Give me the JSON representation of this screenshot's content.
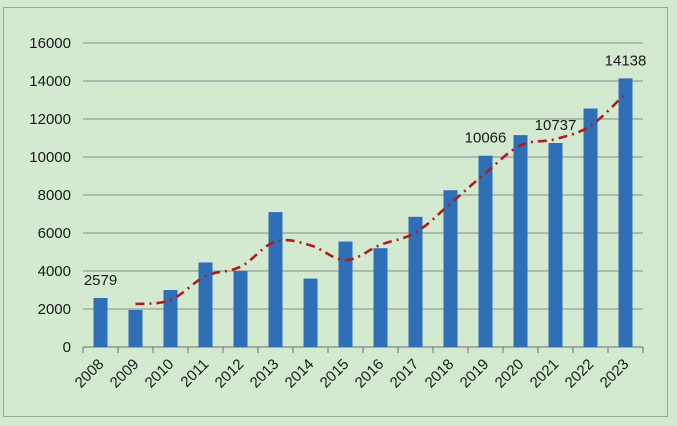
{
  "chart_data": {
    "type": "bar",
    "title": "",
    "xlabel": "",
    "ylabel": "",
    "categories": [
      "2008",
      "2009",
      "2010",
      "2011",
      "2012",
      "2013",
      "2014",
      "2015",
      "2016",
      "2017",
      "2018",
      "2019",
      "2020",
      "2021",
      "2022",
      "2023"
    ],
    "series": [
      {
        "values": [
          2579,
          1950,
          3000,
          4450,
          4000,
          7100,
          3600,
          5550,
          5200,
          6850,
          8250,
          10066,
          11150,
          10737,
          12550,
          14138
        ],
        "color": "#2e6fb7"
      }
    ],
    "trendline": {
      "type": "moving-average",
      "period": 2,
      "style": "dash-dot",
      "color": "#b01c1c"
    },
    "data_labels": [
      {
        "category": "2008",
        "text": "2579"
      },
      {
        "category": "2019",
        "text": "10066"
      },
      {
        "category": "2021",
        "text": "10737"
      },
      {
        "category": "2023",
        "text": "14138"
      }
    ],
    "y_ticks": [
      "0",
      "2000",
      "4000",
      "6000",
      "8000",
      "10000",
      "12000",
      "14000",
      "16000"
    ],
    "ylim": [
      0,
      16000
    ],
    "grid": true,
    "legend": "none",
    "background_color": "#d3e9d0",
    "gridline_color": "#8a8a8a"
  }
}
